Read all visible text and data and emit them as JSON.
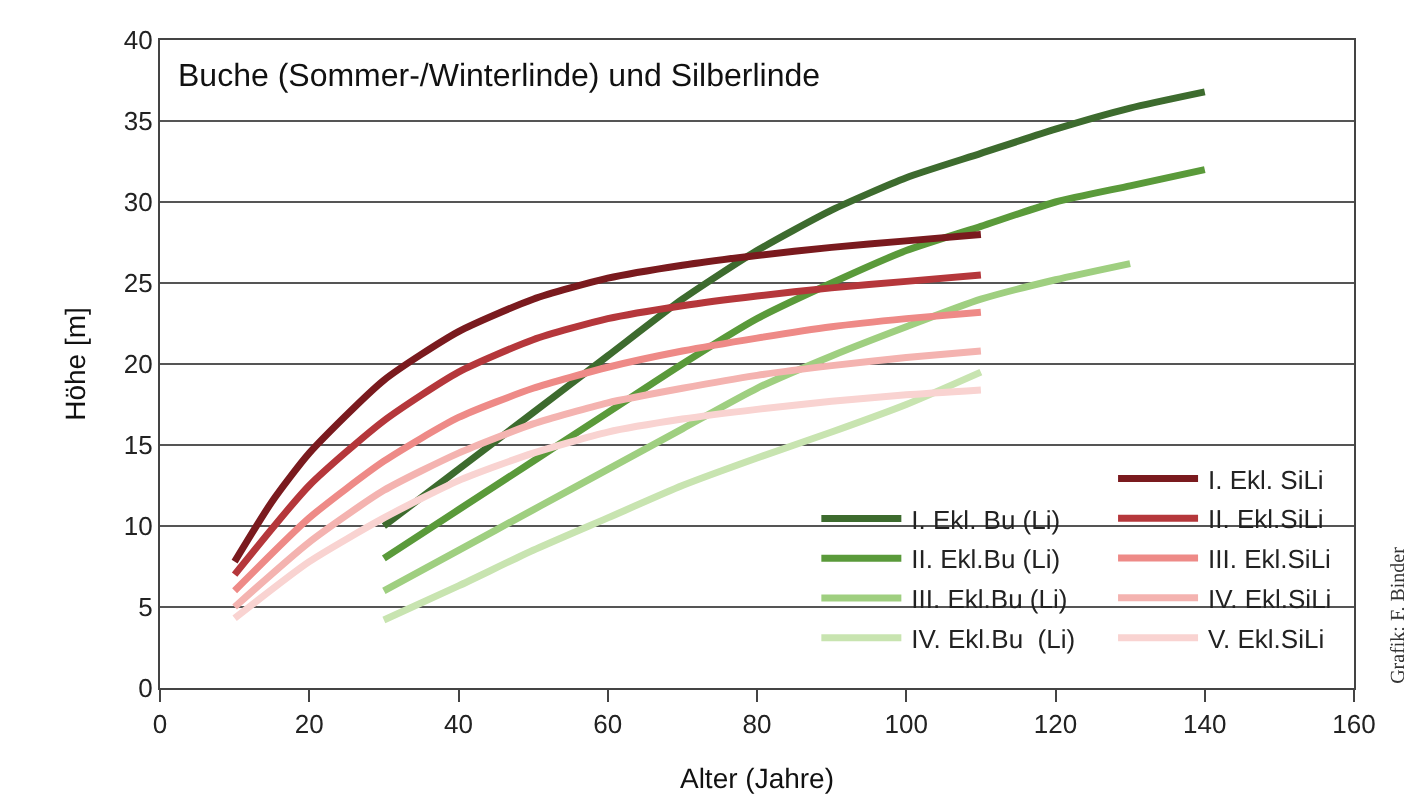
{
  "chart_data": {
    "type": "line",
    "title": "Buche (Sommer-/Winterlinde) und Silberlinde",
    "xlabel": "Alter (Jahre)",
    "ylabel": "Höhe [m]",
    "xlim": [
      0,
      160
    ],
    "xticks": [
      0,
      20,
      40,
      60,
      80,
      100,
      120,
      140,
      160
    ],
    "ylim": [
      0,
      40
    ],
    "yticks": [
      0,
      5,
      10,
      15,
      20,
      25,
      30,
      35,
      40
    ],
    "grid": "y",
    "legend": "bottom right",
    "marker": "none",
    "line_style": "solid",
    "annotations": [
      "Grafik: F. Binder"
    ],
    "series": [
      {
        "name": "I. Ekl. Bu (Li)",
        "color": "#3d6b2e",
        "x": [
          30,
          40,
          50,
          60,
          70,
          80,
          90,
          100,
          110,
          120,
          130,
          140
        ],
        "values": [
          10,
          13.5,
          17,
          20.5,
          24,
          27,
          29.5,
          31.5,
          33,
          34.5,
          35.8,
          36.8
        ]
      },
      {
        "name": "II. Ekl.Bu (Li)",
        "color": "#5a9a3a",
        "x": [
          30,
          40,
          50,
          60,
          70,
          80,
          90,
          100,
          110,
          120,
          130,
          140
        ],
        "values": [
          8,
          11,
          14,
          17,
          20,
          22.8,
          25,
          27,
          28.5,
          30,
          31,
          32
        ]
      },
      {
        "name": "III. Ekl.Bu (Li)",
        "color": "#9fcf80",
        "x": [
          30,
          40,
          50,
          60,
          70,
          80,
          90,
          100,
          110,
          120,
          130
        ],
        "values": [
          6,
          8.5,
          11,
          13.5,
          16,
          18.5,
          20.5,
          22.3,
          24,
          25.2,
          26.2
        ]
      },
      {
        "name": "IV. Ekl.Bu  (Li)",
        "color": "#c8e4b0",
        "x": [
          30,
          40,
          50,
          60,
          70,
          80,
          90,
          100,
          110
        ],
        "values": [
          4.2,
          6.3,
          8.5,
          10.5,
          12.5,
          14.2,
          15.8,
          17.5,
          19.5
        ]
      },
      {
        "name": "I. Ekl. SiLi",
        "color": "#7a1a1e",
        "x": [
          10,
          15,
          20,
          30,
          40,
          50,
          60,
          70,
          80,
          90,
          100,
          110
        ],
        "values": [
          7.8,
          11.5,
          14.5,
          19,
          22,
          24,
          25.3,
          26.1,
          26.7,
          27.2,
          27.6,
          28
        ]
      },
      {
        "name": "II. Ekl.SiLi",
        "color": "#b5373b",
        "x": [
          10,
          20,
          30,
          40,
          50,
          60,
          70,
          80,
          90,
          100,
          110
        ],
        "values": [
          7,
          12.5,
          16.5,
          19.5,
          21.5,
          22.8,
          23.6,
          24.2,
          24.7,
          25.1,
          25.5
        ]
      },
      {
        "name": "III. Ekl.SiLi",
        "color": "#ee8a87",
        "x": [
          10,
          20,
          30,
          40,
          50,
          60,
          70,
          80,
          90,
          100,
          110
        ],
        "values": [
          6,
          10.5,
          14,
          16.7,
          18.5,
          19.8,
          20.8,
          21.6,
          22.3,
          22.8,
          23.2
        ]
      },
      {
        "name": "IV. Ekl.SiLi",
        "color": "#f4b3b0",
        "x": [
          10,
          20,
          30,
          40,
          50,
          60,
          70,
          80,
          90,
          100,
          110
        ],
        "values": [
          5,
          9,
          12.2,
          14.5,
          16.3,
          17.6,
          18.5,
          19.3,
          19.9,
          20.4,
          20.8
        ]
      },
      {
        "name": "V. Ekl.SiLi",
        "color": "#f9d3d1",
        "x": [
          10,
          20,
          30,
          40,
          50,
          60,
          70,
          80,
          90,
          100,
          110
        ],
        "values": [
          4.3,
          7.8,
          10.5,
          12.8,
          14.5,
          15.8,
          16.6,
          17.2,
          17.7,
          18.1,
          18.4
        ]
      }
    ]
  }
}
